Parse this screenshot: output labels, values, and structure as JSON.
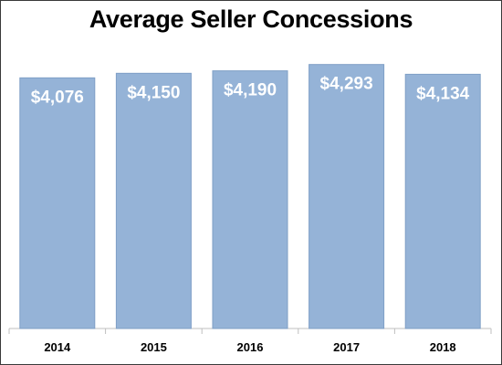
{
  "chart_data": {
    "type": "bar",
    "title": "Average Seller Concessions",
    "categories": [
      "2014",
      "2015",
      "2016",
      "2017",
      "2018"
    ],
    "values": [
      4076,
      4150,
      4190,
      4293,
      4134
    ],
    "data_labels": [
      "$4,076",
      "$4,150",
      "$4,190",
      "$4,293",
      "$4,134"
    ],
    "xlabel": "",
    "ylabel": "",
    "ylim": [
      0,
      4600
    ],
    "grid": false,
    "legend": "none",
    "colors": {
      "bar_fill": "#95b3d7",
      "bar_stroke": "#7f9fc6",
      "label_text": "#ffffff",
      "axis_line": "#bfbfbf",
      "tick_text": "#000000"
    }
  }
}
